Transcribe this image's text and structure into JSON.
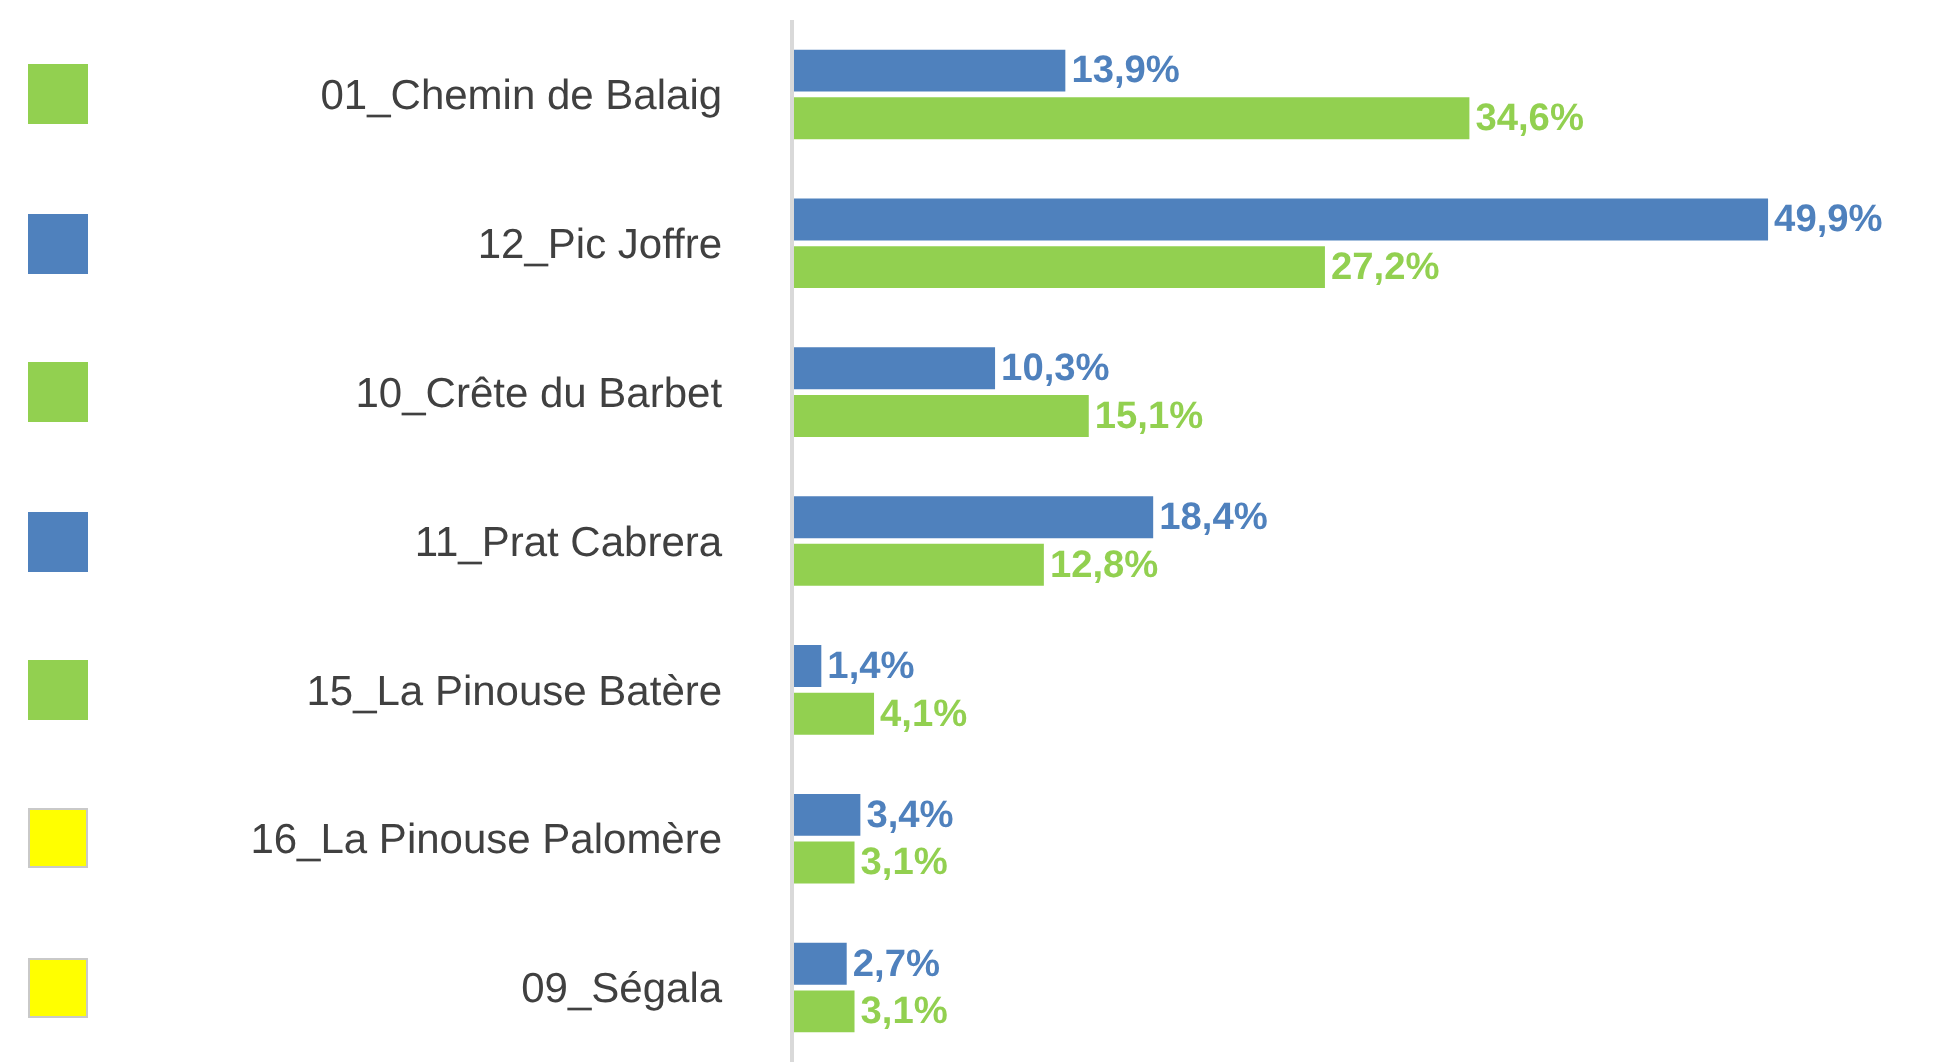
{
  "chart_data": {
    "type": "bar",
    "orientation": "horizontal",
    "categories": [
      "01_Chemin de Balaig",
      "12_Pic Joffre",
      "10_Crête du Barbet",
      "11_Prat Cabrera",
      "15_La Pinouse Batère",
      "16_La Pinouse Palomère",
      "09_Ségala"
    ],
    "series": [
      {
        "color": "#4f81bd",
        "values": [
          13.9,
          49.9,
          10.3,
          18.4,
          1.4,
          3.4,
          2.7
        ],
        "value_labels": [
          "13,9%",
          "49,9%",
          "10,3%",
          "18,4%",
          "1,4%",
          "3,4%",
          "2,7%"
        ]
      },
      {
        "color": "#92d050",
        "values": [
          34.6,
          27.2,
          15.1,
          12.8,
          4.1,
          3.1,
          3.1
        ],
        "value_labels": [
          "34,6%",
          "27,2%",
          "15,1%",
          "12,8%",
          "4,1%",
          "3,1%",
          "3,1%"
        ]
      }
    ],
    "grid": false
  }
}
